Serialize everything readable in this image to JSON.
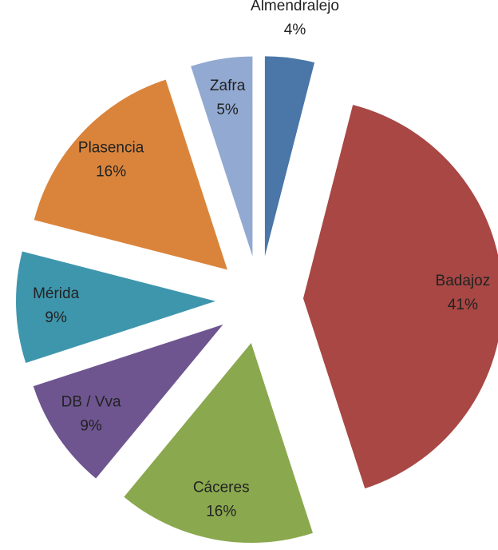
{
  "chart_data": {
    "type": "pie",
    "categories": [
      "Almendralejo",
      "Badajoz",
      "Cáceres",
      "DB / Vva",
      "Mérida",
      "Plasencia",
      "Zafra"
    ],
    "values": [
      4,
      41,
      16,
      9,
      9,
      16,
      5
    ],
    "value_labels": [
      "4%",
      "41%",
      "16%",
      "9%",
      "9%",
      "16%",
      "5%"
    ],
    "colors": [
      "#4a76a8",
      "#a84744",
      "#8aa84e",
      "#6e5590",
      "#3e96ad",
      "#da843b",
      "#92a9d1"
    ]
  }
}
